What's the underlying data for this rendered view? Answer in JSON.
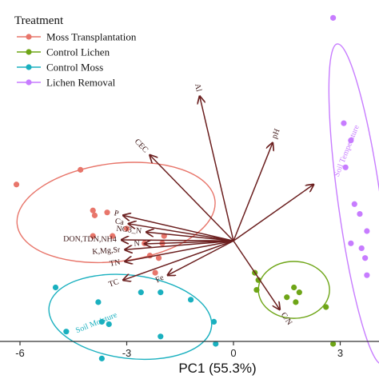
{
  "chart_data": {
    "type": "scatter",
    "xlabel": "PC1 (55.3%)",
    "x_ticks": [
      -6,
      -3,
      0,
      3
    ],
    "xlim": [
      -6.6,
      3.8
    ],
    "ylim": [
      -4.0,
      4.6
    ],
    "legend": {
      "title": "Treatment",
      "placement": "top-left"
    },
    "series": [
      {
        "name": "Moss Transplantation",
        "color": "#E8766B",
        "points": [
          [
            -6.1,
            0.95
          ],
          [
            -4.3,
            1.25
          ],
          [
            -3.95,
            0.42
          ],
          [
            -3.9,
            0.32
          ],
          [
            -3.55,
            0.38
          ],
          [
            -3.95,
            -0.1
          ],
          [
            -3.4,
            -0.1
          ],
          [
            -3.0,
            0.05
          ],
          [
            -2.5,
            -0.25
          ],
          [
            -2.0,
            -0.25
          ],
          [
            -1.95,
            -0.1
          ],
          [
            -2.35,
            -0.5
          ],
          [
            -2.1,
            -0.55
          ],
          [
            -2.2,
            -0.85
          ]
        ]
      },
      {
        "name": "Control Lichen",
        "color": "#6EA517",
        "points": [
          [
            0.6,
            -0.85
          ],
          [
            0.7,
            -1.0
          ],
          [
            0.65,
            -1.2
          ],
          [
            1.5,
            -1.35
          ],
          [
            1.75,
            -1.45
          ],
          [
            1.85,
            -1.25
          ],
          [
            1.7,
            -1.15
          ],
          [
            2.6,
            -1.55
          ],
          [
            2.8,
            -2.3
          ]
        ]
      },
      {
        "name": "Control Moss",
        "color": "#1AB0BF",
        "points": [
          [
            -5.0,
            -1.15
          ],
          [
            -4.7,
            -2.05
          ],
          [
            -3.8,
            -1.45
          ],
          [
            -3.7,
            -1.85
          ],
          [
            -3.5,
            -1.9
          ],
          [
            -2.05,
            -1.25
          ],
          [
            -2.05,
            -2.15
          ],
          [
            -2.6,
            -1.25
          ],
          [
            -1.2,
            -1.4
          ],
          [
            -0.55,
            -1.85
          ],
          [
            -0.5,
            -2.3
          ],
          [
            -3.7,
            -2.6
          ]
        ]
      },
      {
        "name": "Lichen Removal",
        "color": "#C77CFF",
        "points": [
          [
            2.8,
            4.35
          ],
          [
            3.1,
            2.2
          ],
          [
            3.3,
            1.85
          ],
          [
            3.15,
            1.3
          ],
          [
            3.4,
            0.55
          ],
          [
            3.55,
            0.35
          ],
          [
            3.3,
            -0.25
          ],
          [
            3.6,
            -0.35
          ],
          [
            3.75,
            0.0
          ],
          [
            3.75,
            -0.9
          ],
          [
            3.7,
            -0.55
          ]
        ]
      }
    ],
    "ellipses": [
      {
        "series": "Moss Transplantation",
        "cx": -3.3,
        "cy": 0.38,
        "rx": 2.8,
        "ry": 1.0,
        "angle_deg": -7
      },
      {
        "series": "Control Lichen",
        "cx": 1.7,
        "cy": -1.2,
        "rx": 1.0,
        "ry": 0.58,
        "angle_deg": 0
      },
      {
        "series": "Control Moss",
        "cx": -2.9,
        "cy": -1.75,
        "rx": 2.3,
        "ry": 0.85,
        "angle_deg": 7
      },
      {
        "series": "Lichen Removal",
        "cx": 3.55,
        "cy": 0.55,
        "rx": 0.6,
        "ry": 3.3,
        "angle_deg": -8
      }
    ],
    "ellipse_labels": [
      {
        "text": "Soil Moisture",
        "x": -4.4,
        "y": -2.08,
        "color": "#1AB0BF",
        "angle_deg": -22
      },
      {
        "text": "Soil Temperature",
        "x": 2.95,
        "y": 1.1,
        "color": "#C77CFF",
        "angle_deg": -68
      }
    ],
    "loadings_origin": [
      0,
      -0.2
    ],
    "loadings": [
      {
        "label": "CEC",
        "x": -2.35,
        "y": 1.55
      },
      {
        "label": "Al",
        "x": -0.95,
        "y": 2.75
      },
      {
        "label": "pH",
        "x": 1.1,
        "y": 1.8
      },
      {
        "label": "",
        "x": 2.25,
        "y": 0.95
      },
      {
        "label": "P",
        "x": -3.1,
        "y": 0.32
      },
      {
        "label": "Ca",
        "x": -2.95,
        "y": 0.15
      },
      {
        "label": "NO3_N",
        "x": -2.45,
        "y": -0.02
      },
      {
        "label": "DON,TDN,NH4",
        "x": -3.15,
        "y": -0.18
      },
      {
        "label": "N",
        "x": -2.5,
        "y": -0.26
      },
      {
        "label": "K,Mg,Sr",
        "x": -3.05,
        "y": -0.38
      },
      {
        "label": "TN",
        "x": -3.05,
        "y": -0.62
      },
      {
        "label": "TC",
        "x": -3.1,
        "y": -1.0
      },
      {
        "label": "Fe",
        "x": -1.85,
        "y": -0.9
      },
      {
        "label": "C/N",
        "x": 1.3,
        "y": -1.6
      }
    ],
    "loading_color": "#6B1F1F",
    "grid": false
  }
}
